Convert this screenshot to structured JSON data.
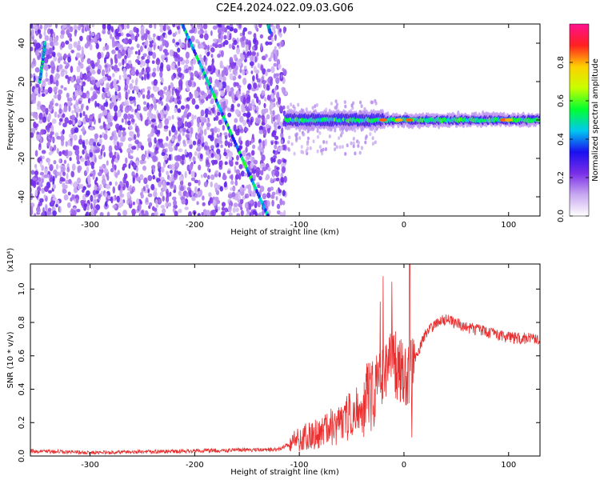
{
  "figure_title": "C2E4.2024.022.09.03.G06",
  "chart_data": [
    {
      "type": "heatmap",
      "xlabel": "Height of straight line (km)",
      "ylabel": "Frequency (Hz)",
      "xlim": [
        -357,
        130
      ],
      "ylim": [
        -50,
        50
      ],
      "x_ticks": [
        "-300",
        "-200",
        "-100",
        "0",
        "100"
      ],
      "x_tick_values": [
        -300,
        -200,
        -100,
        0,
        100
      ],
      "y_ticks": [
        "-40",
        "-20",
        "0",
        "20",
        "40"
      ],
      "y_tick_values": [
        -40,
        -20,
        0,
        20,
        40
      ],
      "colorbar": {
        "label": "Normalized spectral amplitude",
        "range": [
          0,
          1
        ],
        "ticks": [
          "0.0",
          "0.2",
          "0.4",
          "0.6",
          "0.8"
        ],
        "tick_values": [
          0,
          0.2,
          0.4,
          0.6,
          0.8
        ],
        "colormap": [
          "#ffffff",
          "#c8a8f0",
          "#7a2ee8",
          "#1a0ff0",
          "#00c8f0",
          "#00ff30",
          "#c8ff00",
          "#ffd000",
          "#ff2020",
          "#ff1090"
        ]
      },
      "noise_region": {
        "x": [
          -357,
          -113
        ],
        "y": [
          -50,
          50
        ]
      },
      "signal_band": {
        "x": [
          -113,
          130
        ],
        "center_hz": 0,
        "width_hz": 6
      },
      "streaks": [
        {
          "from": [
            -212,
            50
          ],
          "to": [
            -130,
            -50
          ]
        },
        {
          "from": [
            -348,
            20
          ],
          "to": [
            -343,
            40
          ]
        },
        {
          "from": [
            -130,
            50
          ],
          "to": [
            -128,
            46
          ]
        }
      ],
      "grid": false
    },
    {
      "type": "line",
      "xlabel": "Height of straight line (km)",
      "ylabel": "SNR (10 * v/v)",
      "multiplier": "(x10⁴)",
      "xlim": [
        -357,
        130
      ],
      "ylim": [
        0,
        1.15
      ],
      "x_ticks": [
        "-300",
        "-200",
        "-100",
        "0",
        "100"
      ],
      "x_tick_values": [
        -300,
        -200,
        -100,
        0,
        100
      ],
      "y_ticks": [
        "0.0",
        "0.2",
        "0.4",
        "0.6",
        "0.8",
        "1.0"
      ],
      "y_tick_values": [
        0,
        0.2,
        0.4,
        0.6,
        0.8,
        1.0
      ],
      "line_color": "#e83030",
      "profile": {
        "x": [
          -357,
          -300,
          -200,
          -120,
          -110,
          -100,
          -80,
          -60,
          -40,
          -30,
          -20,
          -10,
          -5,
          0,
          5,
          10,
          20,
          30,
          40,
          60,
          80,
          100,
          130
        ],
        "y": [
          0.03,
          0.02,
          0.03,
          0.04,
          0.07,
          0.1,
          0.14,
          0.2,
          0.3,
          0.38,
          0.48,
          0.56,
          0.5,
          0.5,
          0.45,
          0.58,
          0.72,
          0.8,
          0.82,
          0.77,
          0.74,
          0.71,
          0.7
        ]
      },
      "grid": false
    }
  ]
}
